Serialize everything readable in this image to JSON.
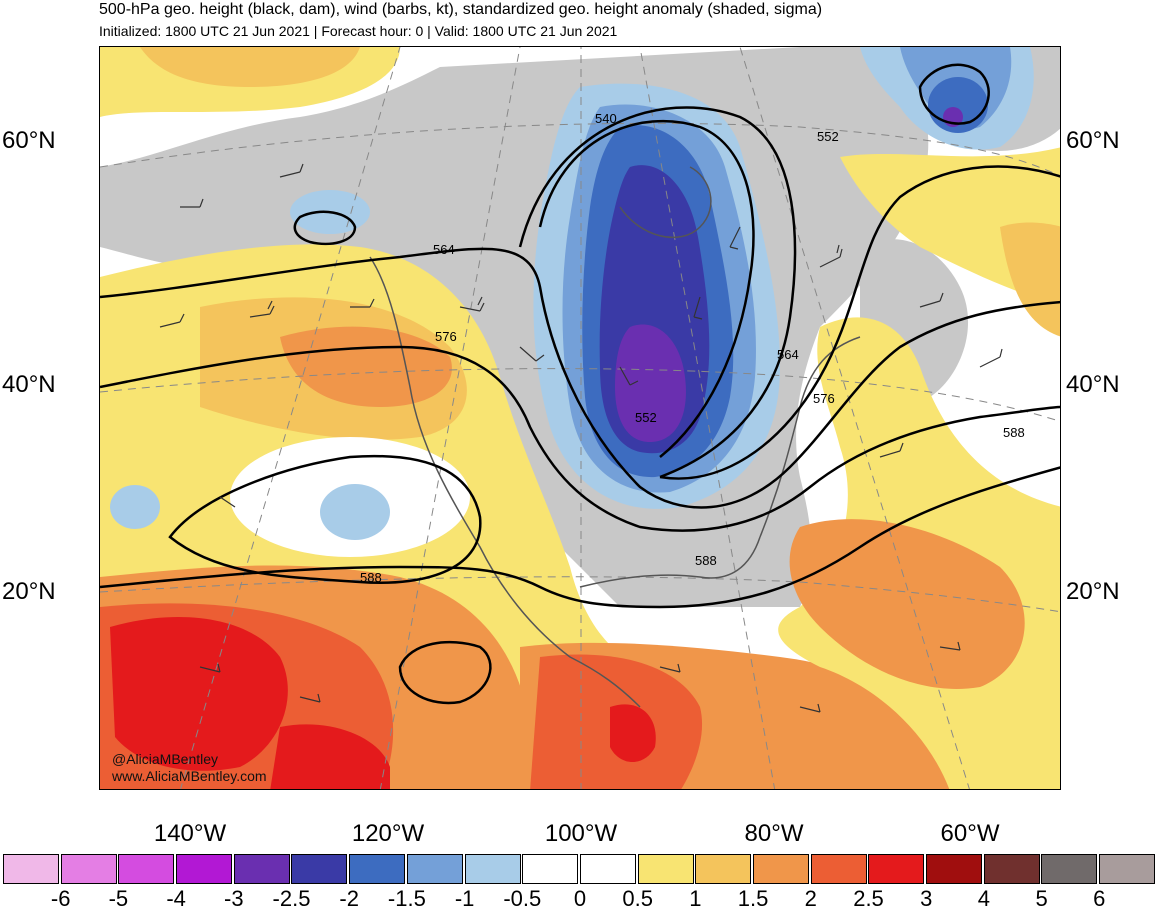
{
  "title": "500-hPa geo. height (black, dam), wind (barbs, kt), standardized geo. height anomaly (shaded, sigma)",
  "subtitle": "Initialized: 1800 UTC 21 Jun 2021 | Forecast hour: 0 | Valid: 1800 UTC 21 Jun 2021",
  "lat_labels": [
    "60°N",
    "40°N",
    "20°N"
  ],
  "lon_labels": [
    "140°W",
    "120°W",
    "100°W",
    "80°W",
    "60°W"
  ],
  "contour_labels": [
    "540",
    "552",
    "552",
    "564",
    "564",
    "576",
    "576",
    "588",
    "588",
    "588"
  ],
  "credit": {
    "handle": "@AliciaMBentley",
    "site": "www.AliciaMBentley.com"
  },
  "colorbar": {
    "labels": [
      "-6",
      "-5",
      "-4",
      "-3",
      "-2.5",
      "-2",
      "-1.5",
      "-1",
      "-0.5",
      "0",
      "0.5",
      "1",
      "1.5",
      "2",
      "2.5",
      "3",
      "4",
      "5",
      "6"
    ],
    "colors": [
      "#f0b8e8",
      "#e47ee4",
      "#d44ce0",
      "#b218d4",
      "#6a2fb0",
      "#3a3aa6",
      "#3d6cc0",
      "#74a0d8",
      "#a8cce8",
      "#ffffff",
      "#ffffff",
      "#f8e472",
      "#f4c45c",
      "#f0964a",
      "#ec5e34",
      "#e41a1c",
      "#a00e0e",
      "#70302e",
      "#706a6a",
      "#a89c9c"
    ]
  },
  "colors": {
    "ocean_land": "#c8c8c8",
    "yellow": "#f8e472",
    "gold": "#f4c45c",
    "orange": "#f0964a",
    "red_orange": "#ec5e34",
    "red": "#e41a1c",
    "blue_light": "#a8cce8",
    "blue_mid": "#74a0d8",
    "blue": "#3d6cc0",
    "indigo": "#3a3aa6",
    "purple": "#6a2fb0"
  }
}
